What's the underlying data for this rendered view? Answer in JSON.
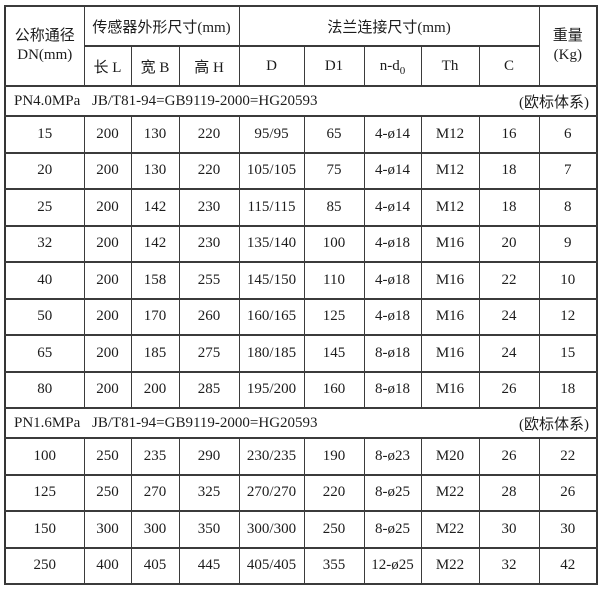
{
  "page": {
    "background": "#ffffff",
    "text_color": "#1c1c1c",
    "border_color": "#3b3b3b"
  },
  "table": {
    "header": {
      "dn": {
        "line1": "公称通径",
        "line2": "DN(mm)"
      },
      "sensor_group": "传感器外形尺寸(mm)",
      "flange_group": "法兰连接尺寸(mm)",
      "weight": {
        "line1": "重量",
        "line2": "(Kg)"
      },
      "sub_columns": [
        {
          "key": "length-l",
          "label": "长 L"
        },
        {
          "key": "width-b",
          "label": "宽 B"
        },
        {
          "key": "height-h",
          "label": "高 H"
        },
        {
          "key": "d",
          "label": "D"
        },
        {
          "key": "d1",
          "label": "D1"
        },
        {
          "key": "n-d0",
          "label": "n-d",
          "sub": "0"
        },
        {
          "key": "th",
          "label": "Th"
        },
        {
          "key": "c",
          "label": "C"
        }
      ]
    },
    "sections": [
      {
        "pressure": "PN4.0MPa",
        "standard": "JB/T81-94=GB9119-2000=HG20593",
        "note": "(欧标体系)",
        "rows": [
          [
            "15",
            "200",
            "130",
            "220",
            "95/95",
            "65",
            "4-ø14",
            "M12",
            "16",
            "6"
          ],
          [
            "20",
            "200",
            "130",
            "220",
            "105/105",
            "75",
            "4-ø14",
            "M12",
            "18",
            "7"
          ],
          [
            "25",
            "200",
            "142",
            "230",
            "115/115",
            "85",
            "4-ø14",
            "M12",
            "18",
            "8"
          ],
          [
            "32",
            "200",
            "142",
            "230",
            "135/140",
            "100",
            "4-ø18",
            "M16",
            "20",
            "9"
          ],
          [
            "40",
            "200",
            "158",
            "255",
            "145/150",
            "110",
            "4-ø18",
            "M16",
            "22",
            "10"
          ],
          [
            "50",
            "200",
            "170",
            "260",
            "160/165",
            "125",
            "4-ø18",
            "M16",
            "24",
            "12"
          ],
          [
            "65",
            "200",
            "185",
            "275",
            "180/185",
            "145",
            "8-ø18",
            "M16",
            "24",
            "15"
          ],
          [
            "80",
            "200",
            "200",
            "285",
            "195/200",
            "160",
            "8-ø18",
            "M16",
            "26",
            "18"
          ]
        ]
      },
      {
        "pressure": "PN1.6MPa",
        "standard": "JB/T81-94=GB9119-2000=HG20593",
        "note": "(欧标体系)",
        "rows": [
          [
            "100",
            "250",
            "235",
            "290",
            "230/235",
            "190",
            "8-ø23",
            "M20",
            "26",
            "22"
          ],
          [
            "125",
            "250",
            "270",
            "325",
            "270/270",
            "220",
            "8-ø25",
            "M22",
            "28",
            "26"
          ],
          [
            "150",
            "300",
            "300",
            "350",
            "300/300",
            "250",
            "8-ø25",
            "M22",
            "30",
            "30"
          ],
          [
            "250",
            "400",
            "405",
            "445",
            "405/405",
            "355",
            "12-ø25",
            "M22",
            "32",
            "42"
          ]
        ]
      }
    ]
  }
}
